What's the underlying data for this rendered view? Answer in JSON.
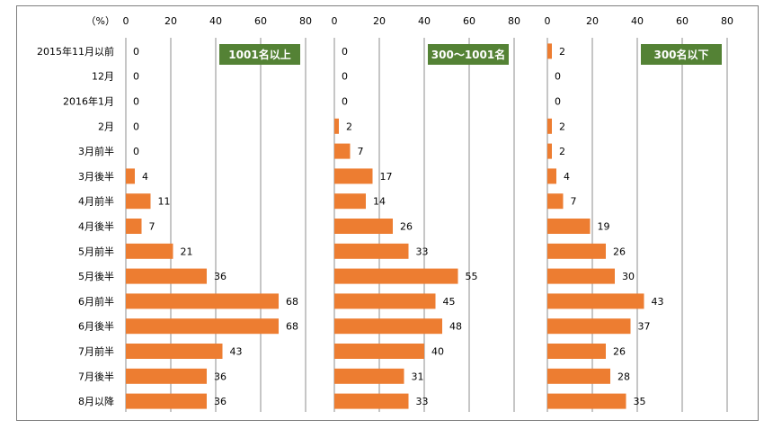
{
  "chart_data": {
    "type": "bar",
    "orientation": "horizontal",
    "unit_label": "（%）",
    "x_ticks": [
      0,
      20,
      40,
      60,
      80
    ],
    "xlim": [
      0,
      80
    ],
    "grid": true,
    "bar_color": "#ed7d31",
    "badge_color": "#548235",
    "categories": [
      "2015年11月以前",
      "12月",
      "2016年1月",
      "2月",
      "3月前半",
      "3月後半",
      "4月前半",
      "4月後半",
      "5月前半",
      "5月後半",
      "6月前半",
      "6月後半",
      "7月前半",
      "7月後半",
      "8月以降"
    ],
    "panels": [
      {
        "name": "1001名以上",
        "values": [
          0,
          0,
          0,
          0,
          0,
          4,
          11,
          7,
          21,
          36,
          68,
          68,
          43,
          36,
          36
        ]
      },
      {
        "name": "300～1001名",
        "values": [
          0,
          0,
          0,
          2,
          7,
          17,
          14,
          26,
          33,
          55,
          45,
          48,
          40,
          31,
          33
        ]
      },
      {
        "name": "300名以下",
        "values": [
          2,
          0,
          0,
          2,
          2,
          4,
          7,
          19,
          26,
          30,
          43,
          37,
          26,
          28,
          35
        ]
      }
    ]
  }
}
